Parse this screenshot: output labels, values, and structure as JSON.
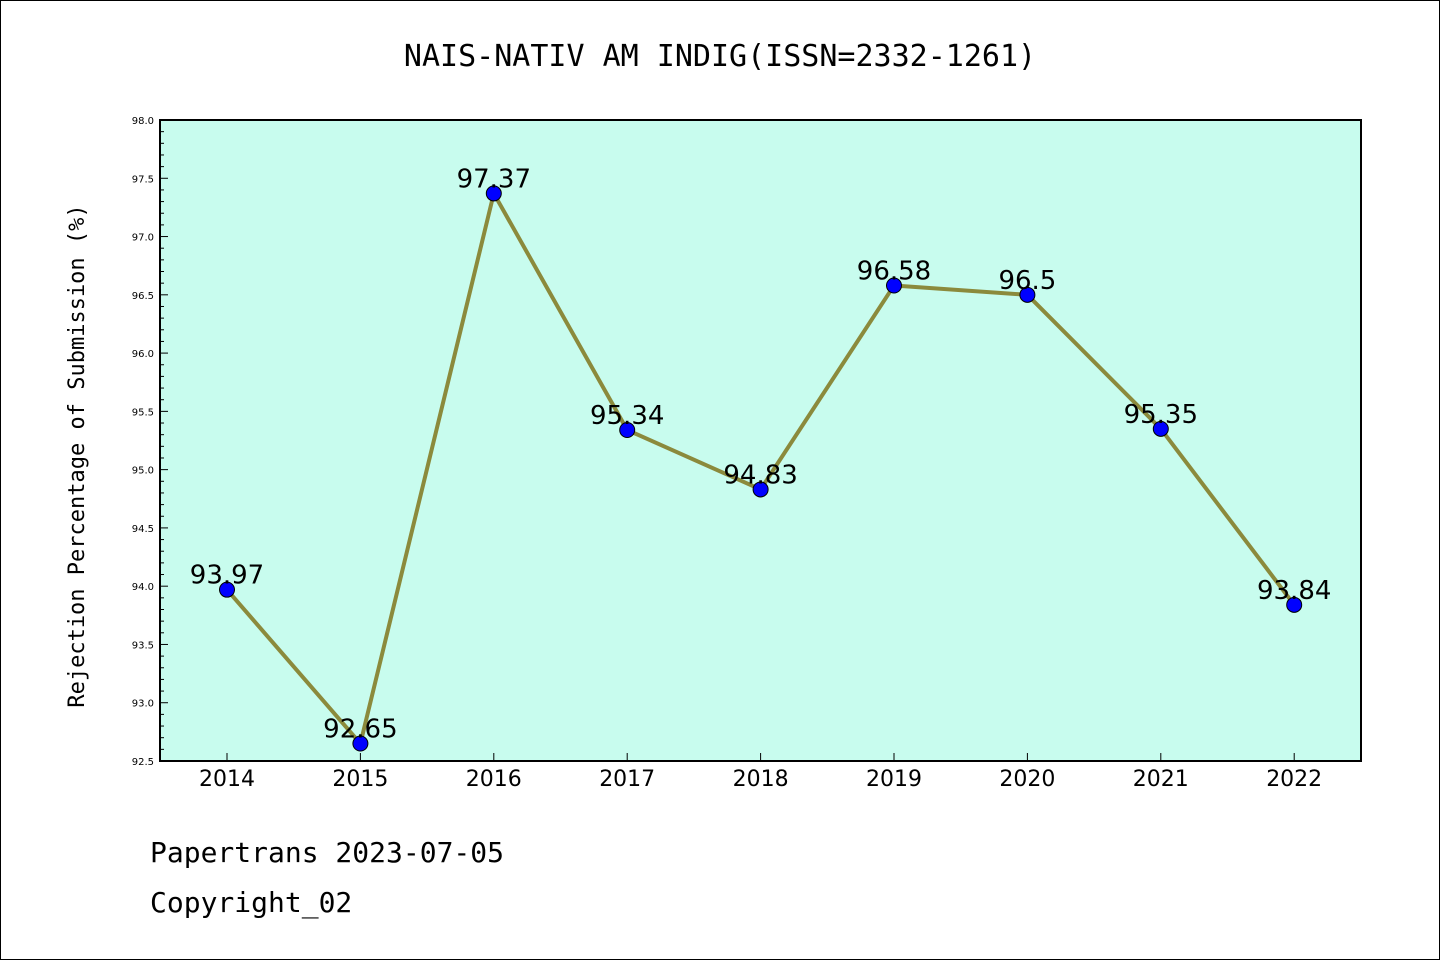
{
  "chart_data": {
    "type": "line",
    "title": "NAIS-NATIV AM INDIG(ISSN=2332-1261)",
    "xlabel": "",
    "ylabel": "Rejection Percentage of Submission (%)",
    "categories": [
      "2014",
      "2015",
      "2016",
      "2017",
      "2018",
      "2019",
      "2020",
      "2021",
      "2022"
    ],
    "values": [
      93.97,
      92.65,
      97.37,
      95.34,
      94.83,
      96.58,
      96.5,
      95.35,
      93.84
    ],
    "data_labels": [
      "93.97",
      "92.65",
      "97.37",
      "95.34",
      "94.83",
      "96.58",
      "96.5",
      "95.35",
      "93.84"
    ],
    "ylim": [
      92.5,
      98.0
    ],
    "yticks": [
      "92.5",
      "93.0",
      "93.5",
      "94.0",
      "94.5",
      "95.0",
      "95.5",
      "96.0",
      "96.5",
      "97.0",
      "97.5",
      "98.0"
    ],
    "grid": false,
    "legend": "none",
    "colors": {
      "plot_background": "#c8fcee",
      "line": "#8b8a3c",
      "marker": "#0000ff"
    }
  },
  "footer": {
    "line1": "Papertrans 2023-07-05",
    "line2": "Copyright_02"
  }
}
